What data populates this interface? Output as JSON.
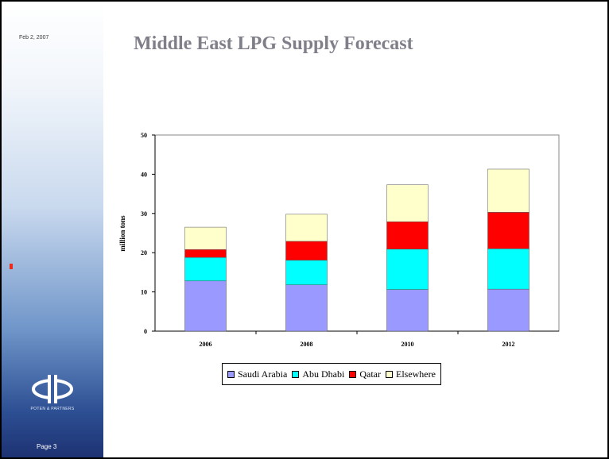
{
  "slide": {
    "title": "Middle East LPG Supply Forecast",
    "date_text": "Feb 2, 2007",
    "logo_caption": "POTEN & PARTNERS",
    "page_label": "Page 3"
  },
  "colors": {
    "Saudi Arabia": "#9999ff",
    "Abu Dhabi": "#00ffff",
    "Qatar": "#ff0000",
    "Elsewhere": "#ffffcc",
    "accent_marker": "#ee2a1e"
  },
  "chart_data": {
    "type": "bar",
    "stacked": true,
    "categories": [
      "2006",
      "2008",
      "2010",
      "2012"
    ],
    "series": [
      {
        "name": "Saudi Arabia",
        "values": [
          12.8,
          11.8,
          10.6,
          10.7
        ]
      },
      {
        "name": "Abu Dhabi",
        "values": [
          6.0,
          6.3,
          10.3,
          10.3
        ]
      },
      {
        "name": "Qatar",
        "values": [
          2.0,
          4.8,
          7.0,
          9.3
        ]
      },
      {
        "name": "Elsewhere",
        "values": [
          5.7,
          6.9,
          9.4,
          11.0
        ]
      }
    ],
    "ylabel": "million tons",
    "ylim": [
      0,
      50
    ],
    "yticks": [
      "0",
      "10",
      "20",
      "30",
      "40",
      "50"
    ],
    "grid": false,
    "legend": "bottom"
  }
}
